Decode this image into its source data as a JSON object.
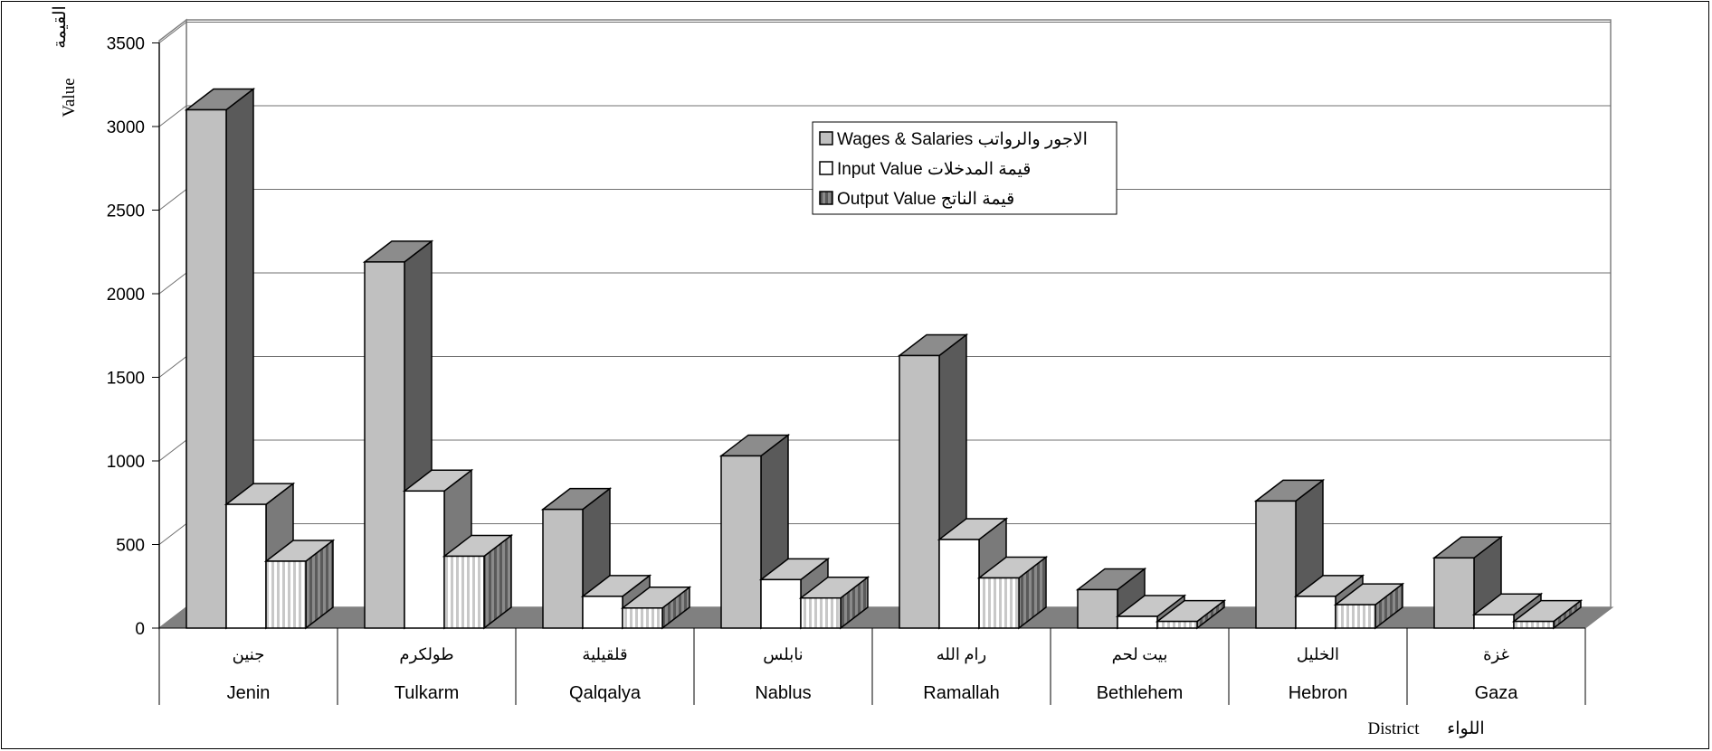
{
  "chart_data": {
    "type": "bar",
    "subtype": "3d-clustered-column",
    "categories": [
      "Jenin",
      "Tulkarm",
      "Qalqalya",
      "Nablus",
      "Ramallah",
      "Bethlehem",
      "Hebron",
      "Gaza"
    ],
    "categories_ar": [
      "جنين",
      "طولكرم",
      "قلقيلية",
      "نابلس",
      "رام الله",
      "بيت لحم",
      "الخليل",
      "غزة"
    ],
    "series": [
      {
        "name": "Wages & Salaries الاجور والرواتب",
        "values": [
          3100,
          2190,
          710,
          1030,
          1630,
          230,
          760,
          420
        ],
        "face": "#c0c0c0",
        "side": "#5a5a5a",
        "top": "#8c8c8c",
        "pattern": "solid"
      },
      {
        "name": "Input Value قيمة المدخلات",
        "values": [
          740,
          820,
          190,
          290,
          530,
          70,
          190,
          80
        ],
        "face": "#ffffff",
        "side": "#7a7a7a",
        "top": "#c8c8c8",
        "pattern": "solid"
      },
      {
        "name": "Output Value قيمة الناتج",
        "values": [
          400,
          430,
          120,
          180,
          300,
          40,
          140,
          40
        ],
        "face": "#ffffff",
        "side": "#7a7a7a",
        "top": "#c8c8c8",
        "pattern": "vertical-stripes"
      }
    ],
    "ylim": [
      0,
      3500
    ],
    "yticks": [
      0,
      500,
      1000,
      1500,
      2000,
      2500,
      3000,
      3500
    ],
    "ylabel": "Value",
    "ylabel_ar": "القيمة",
    "xlabel": "District",
    "xlabel_ar": "اللواء",
    "grid": true,
    "legend_position": "top-center",
    "floor_color": "#808080",
    "wall_color": "#ffffff"
  }
}
